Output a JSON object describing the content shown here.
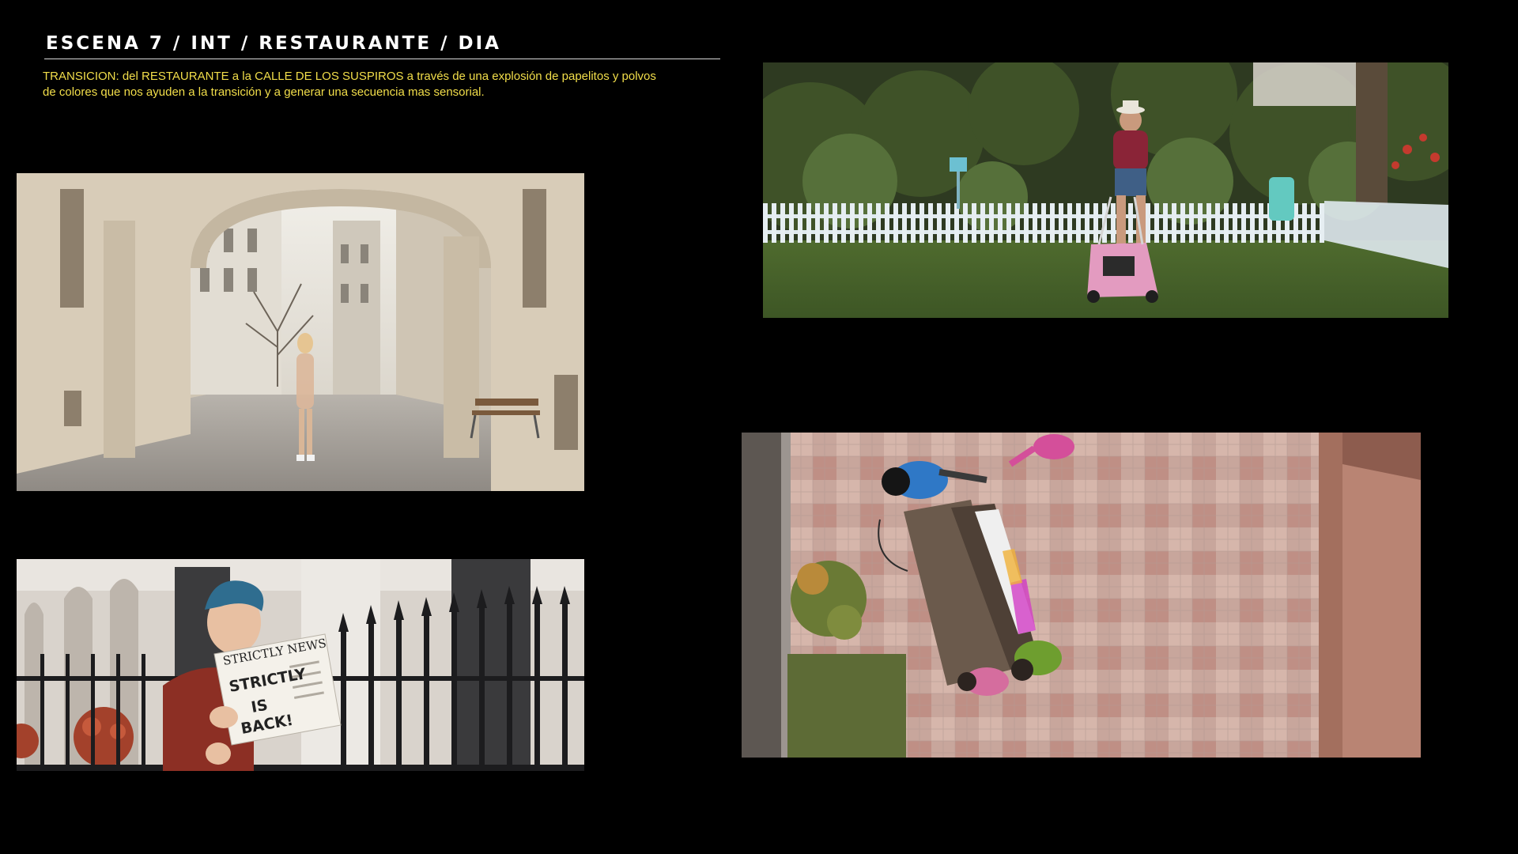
{
  "scene": {
    "title": "ESCENA 7 / INT / RESTAURANTE / DIA",
    "transition_note": "TRANSICION: del RESTAURANTE a la CALLE DE LOS SUSPIROS a través de una explosión de papelitos y polvos de colores que nos ayuden a la transición y a generar una secuencia mas sensorial."
  },
  "stills": {
    "newspaper": {
      "masthead": "STRICTLY NEWS",
      "headline_line1": "STRICTLY",
      "headline_line2": "IS",
      "headline_line3": "BACK!"
    }
  },
  "colors": {
    "background": "#000000",
    "title": "#ffffff",
    "note": "#f2de4a"
  }
}
